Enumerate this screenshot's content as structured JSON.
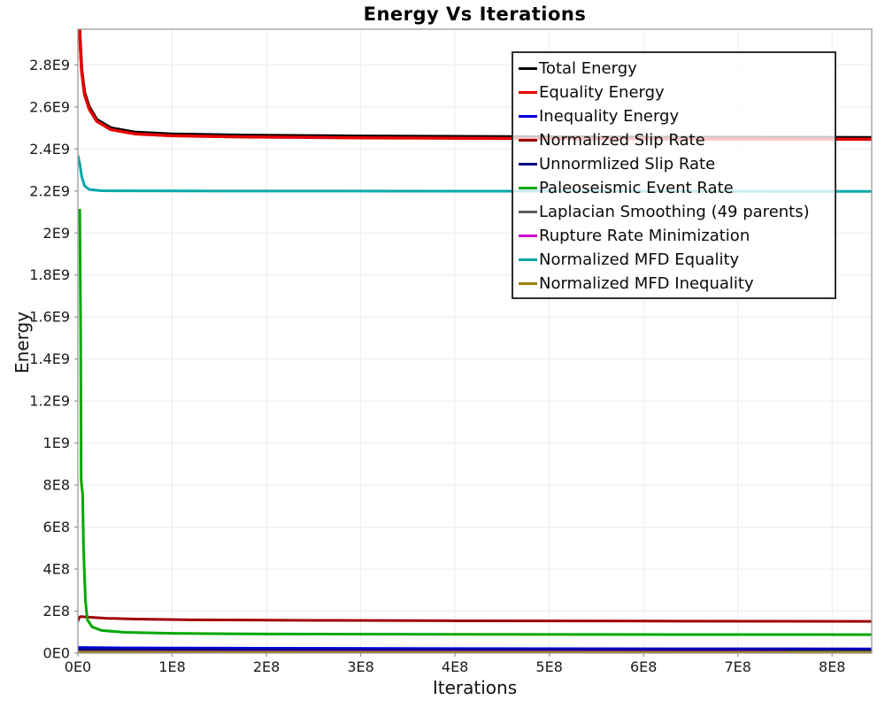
{
  "chart": {
    "title": "Energy Vs Iterations",
    "xlabel": "Iterations",
    "ylabel": "Energy"
  },
  "chart_data": {
    "type": "line",
    "title": "Energy Vs Iterations",
    "xlabel": "Iterations",
    "ylabel": "Energy",
    "xlim": [
      0,
      842000000.0
    ],
    "ylim": [
      0,
      2970000000.0
    ],
    "grid": true,
    "legend_position": "top-right",
    "x_tick_values": [
      0,
      100000000.0,
      200000000.0,
      300000000.0,
      400000000.0,
      500000000.0,
      600000000.0,
      700000000.0,
      800000000.0
    ],
    "x_tick_labels": [
      "0E0",
      "1E8",
      "2E8",
      "3E8",
      "4E8",
      "5E8",
      "6E8",
      "7E8",
      "8E8"
    ],
    "y_tick_values": [
      0,
      200000000.0,
      400000000.0,
      600000000.0,
      800000000.0,
      1000000000.0,
      1200000000.0,
      1400000000.0,
      1600000000.0,
      1800000000.0,
      2000000000.0,
      2200000000.0,
      2400000000.0,
      2600000000.0,
      2800000000.0
    ],
    "y_tick_labels": [
      "0E0",
      "2E8",
      "4E8",
      "6E8",
      "8E8",
      "1E9",
      "1.2E9",
      "1.4E9",
      "1.6E9",
      "1.8E9",
      "2E9",
      "2.2E9",
      "2.4E9",
      "2.6E9",
      "2.8E9"
    ],
    "series": [
      {
        "name": "Total Energy",
        "color": "#000000",
        "width": 3.5,
        "points": [
          [
            0,
            3600000000.0
          ],
          [
            1000000.0,
            3200000000.0
          ],
          [
            2000000.0,
            2950000000.0
          ],
          [
            4000000.0,
            2780000000.0
          ],
          [
            7000000.0,
            2670000000.0
          ],
          [
            12000000.0,
            2600000000.0
          ],
          [
            20000000.0,
            2540000000.0
          ],
          [
            35000000.0,
            2500000000.0
          ],
          [
            60000000.0,
            2480000000.0
          ],
          [
            100000000.0,
            2471000000.0
          ],
          [
            180000000.0,
            2465000000.0
          ],
          [
            300000000.0,
            2461000000.0
          ],
          [
            450000000.0,
            2458000000.0
          ],
          [
            600000000.0,
            2456000000.0
          ],
          [
            842000000.0,
            2454000000.0
          ]
        ]
      },
      {
        "name": "Equality Energy",
        "color": "#e60000",
        "width": 3.5,
        "points": [
          [
            0,
            3590000000.0
          ],
          [
            1000000.0,
            3190000000.0
          ],
          [
            2000000.0,
            2940000000.0
          ],
          [
            4000000.0,
            2770000000.0
          ],
          [
            7000000.0,
            2660000000.0
          ],
          [
            12000000.0,
            2590000000.0
          ],
          [
            20000000.0,
            2532000000.0
          ],
          [
            35000000.0,
            2492000000.0
          ],
          [
            60000000.0,
            2472000000.0
          ],
          [
            100000000.0,
            2463000000.0
          ],
          [
            180000000.0,
            2457000000.0
          ],
          [
            300000000.0,
            2453000000.0
          ],
          [
            450000000.0,
            2450000000.0
          ],
          [
            600000000.0,
            2448000000.0
          ],
          [
            842000000.0,
            2446000000.0
          ]
        ]
      },
      {
        "name": "Inequality Energy",
        "color": "#0000dd",
        "width": 3,
        "points": [
          [
            0,
            27000000.0
          ],
          [
            50000000.0,
            25000000.0
          ],
          [
            200000000.0,
            23000000.0
          ],
          [
            400000000.0,
            21500000.0
          ],
          [
            842000000.0,
            20000000.0
          ]
        ]
      },
      {
        "name": "Normalized Slip Rate",
        "color": "#a00000",
        "width": 3,
        "points": [
          [
            0,
            152000000.0
          ],
          [
            1500000.0,
            170000000.0
          ],
          [
            3000000.0,
            174000000.0
          ],
          [
            6000000.0,
            173000000.0
          ],
          [
            15000000.0,
            170000000.0
          ],
          [
            30000000.0,
            166000000.0
          ],
          [
            60000000.0,
            162000000.0
          ],
          [
            120000000.0,
            158500000.0
          ],
          [
            250000000.0,
            156000000.0
          ],
          [
            400000000.0,
            154000000.0
          ],
          [
            600000000.0,
            152500000.0
          ],
          [
            842000000.0,
            151000000.0
          ]
        ]
      },
      {
        "name": "Unnormlized Slip Rate",
        "color": "#000080",
        "width": 2.5,
        "points": [
          [
            0,
            18000000.0
          ],
          [
            100000000.0,
            16000000.0
          ],
          [
            400000000.0,
            15000000.0
          ],
          [
            842000000.0,
            14500000.0
          ]
        ]
      },
      {
        "name": "Paleoseismic Event Rate",
        "color": "#00a800",
        "width": 3,
        "points": [
          [
            2000000.0,
            2115000000.0
          ],
          [
            3000000.0,
            1500000000.0
          ],
          [
            3500000.0,
            820000000.0
          ],
          [
            5000000.0,
            760000000.0
          ],
          [
            6000000.0,
            500000000.0
          ],
          [
            8000000.0,
            250000000.0
          ],
          [
            10000000.0,
            160000000.0
          ],
          [
            15000000.0,
            125000000.0
          ],
          [
            25000000.0,
            108000000.0
          ],
          [
            50000000.0,
            99000000.0
          ],
          [
            100000000.0,
            94000000.0
          ],
          [
            200000000.0,
            91000000.0
          ],
          [
            400000000.0,
            89500000.0
          ],
          [
            842000000.0,
            88000000.0
          ]
        ]
      },
      {
        "name": "Laplacian Smoothing (49 parents)",
        "color": "#5f5f5f",
        "width": 2,
        "points": [
          [
            0,
            9000000.0
          ],
          [
            300000000.0,
            8300000.0
          ],
          [
            842000000.0,
            8000000.0
          ]
        ]
      },
      {
        "name": "Rupture Rate Minimization",
        "color": "#cc00cc",
        "width": 2,
        "points": [
          [
            0,
            6500000.0
          ],
          [
            842000000.0,
            6000000.0
          ]
        ]
      },
      {
        "name": "Normalized MFD Equality",
        "color": "#00a8a8",
        "width": 3,
        "points": [
          [
            0,
            2370000000.0
          ],
          [
            2000000.0,
            2330000000.0
          ],
          [
            4000000.0,
            2270000000.0
          ],
          [
            7000000.0,
            2225000000.0
          ],
          [
            12000000.0,
            2207000000.0
          ],
          [
            25000000.0,
            2201000000.0
          ],
          [
            100000000.0,
            2200000000.0
          ],
          [
            842000000.0,
            2198000000.0
          ]
        ]
      },
      {
        "name": "Normalized MFD Inequality",
        "color": "#a08000",
        "width": 2.5,
        "points": [
          [
            0,
            4000000.0
          ],
          [
            842000000.0,
            3500000.0
          ]
        ]
      }
    ]
  }
}
